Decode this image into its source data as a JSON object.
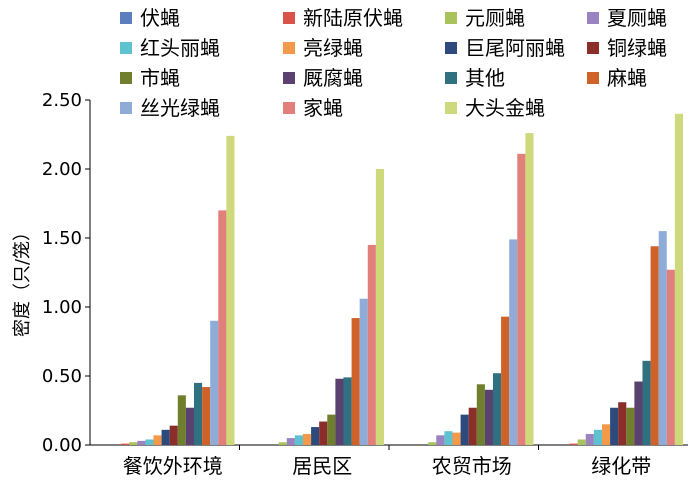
{
  "chart_data": {
    "type": "bar",
    "categories": [
      "餐饮外环境",
      "居民区",
      "农贸市场",
      "绿化带"
    ],
    "ylabel": "密度（只/笼）",
    "ylim": [
      0,
      2.5
    ],
    "yticks": [
      "0.00",
      "0.50",
      "1.00",
      "1.50",
      "2.00",
      "2.50"
    ],
    "legend_position": "top",
    "series": [
      {
        "name": "伏蝇",
        "color": "#5b7fbd",
        "values": [
          0.0,
          0.0,
          0.0,
          0.0
        ]
      },
      {
        "name": "新陆原伏蝇",
        "color": "#d9534a",
        "values": [
          0.01,
          0.0,
          0.0,
          0.01
        ]
      },
      {
        "name": "元厕蝇",
        "color": "#a9c25a",
        "values": [
          0.02,
          0.02,
          0.02,
          0.04
        ]
      },
      {
        "name": "夏厕蝇",
        "color": "#9b82c0",
        "values": [
          0.03,
          0.05,
          0.07,
          0.08
        ]
      },
      {
        "name": "红头丽蝇",
        "color": "#5fc2d0",
        "values": [
          0.04,
          0.07,
          0.1,
          0.11
        ]
      },
      {
        "name": "亮绿蝇",
        "color": "#f39a4a",
        "values": [
          0.07,
          0.08,
          0.09,
          0.15
        ]
      },
      {
        "name": "巨尾阿丽蝇",
        "color": "#2d4a7c",
        "values": [
          0.11,
          0.13,
          0.22,
          0.27
        ]
      },
      {
        "name": "铜绿蝇",
        "color": "#8b2e2a",
        "values": [
          0.14,
          0.17,
          0.27,
          0.31
        ]
      },
      {
        "name": "市蝇",
        "color": "#6f7f2e",
        "values": [
          0.36,
          0.22,
          0.44,
          0.27
        ]
      },
      {
        "name": "厩腐蝇",
        "color": "#5a4170",
        "values": [
          0.27,
          0.48,
          0.4,
          0.46
        ]
      },
      {
        "name": "其他",
        "color": "#2f7180",
        "values": [
          0.45,
          0.49,
          0.52,
          0.61
        ]
      },
      {
        "name": "麻蝇",
        "color": "#cf6228",
        "values": [
          0.42,
          0.92,
          0.93,
          1.44
        ]
      },
      {
        "name": "丝光绿蝇",
        "color": "#8facd8",
        "values": [
          0.9,
          1.06,
          1.49,
          1.55
        ]
      },
      {
        "name": "家蝇",
        "color": "#e1807a",
        "values": [
          1.7,
          1.45,
          2.11,
          1.27
        ]
      },
      {
        "name": "大头金蝇",
        "color": "#cdd97a",
        "values": [
          2.24,
          2.0,
          2.26,
          2.4
        ]
      }
    ]
  }
}
